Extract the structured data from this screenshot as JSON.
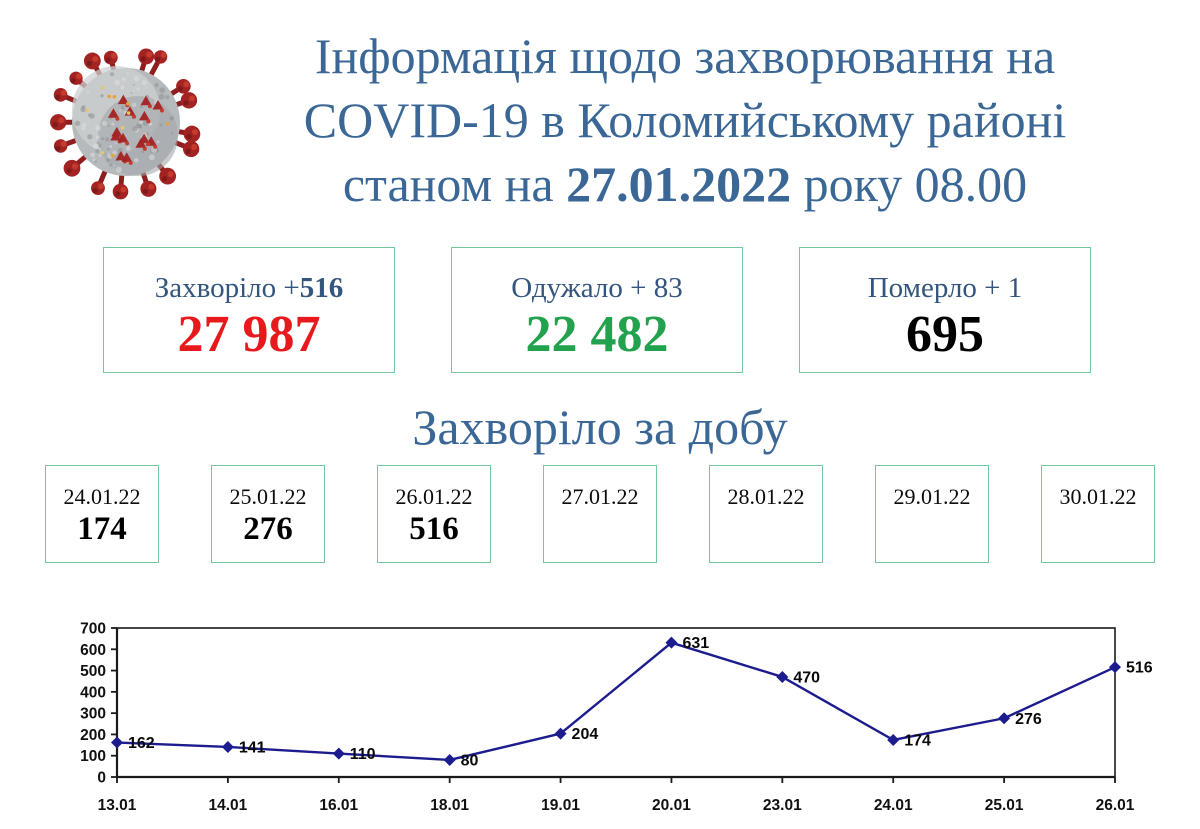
{
  "header": {
    "title_line1": "Інформація щодо захворювання на",
    "title_line2": "COVID-19 в Коломийському районі",
    "title_line3_prefix": "станом на ",
    "title_line3_bold": "27.01.2022",
    "title_line3_suffix": " року 08.00"
  },
  "icons": {
    "virus": "coronavirus-icon"
  },
  "summary_cards": [
    {
      "name": "infected",
      "label": "Захворіло +",
      "label_bold": "516",
      "value": "27 987",
      "color": "#e8191d"
    },
    {
      "name": "recovered",
      "label": "Одужало + 83",
      "label_bold": "",
      "value": "22 482",
      "color": "#22a24c"
    },
    {
      "name": "deceased",
      "label": "Померло + 1",
      "label_bold": "",
      "value": "695",
      "color": "#000000"
    }
  ],
  "daily_section": {
    "heading": "Захворіло за добу"
  },
  "daily_boxes": [
    {
      "date": "24.01.22",
      "value": "174"
    },
    {
      "date": "25.01.22",
      "value": "276"
    },
    {
      "date": "26.01.22",
      "value": "516"
    },
    {
      "date": "27.01.22",
      "value": ""
    },
    {
      "date": "28.01.22",
      "value": ""
    },
    {
      "date": "29.01.22",
      "value": ""
    },
    {
      "date": "30.01.22",
      "value": ""
    }
  ],
  "chart_data": {
    "type": "line",
    "categories": [
      "13.01",
      "14.01",
      "16.01",
      "18.01",
      "19.01",
      "20.01",
      "23.01",
      "24.01",
      "25.01",
      "26.01"
    ],
    "values": [
      162,
      141,
      110,
      80,
      204,
      631,
      470,
      174,
      276,
      516
    ],
    "title": "",
    "xlabel": "",
    "ylabel": "",
    "ylim": [
      0,
      700
    ],
    "ytick_step": 100,
    "grid": false,
    "legend": false,
    "marker": "diamond",
    "data_labels": true
  },
  "colors": {
    "title_blue": "#3a6795",
    "label_blue": "#33557e",
    "box_border": "#74c89b",
    "line_navy": "#1c1c8f",
    "axis_black": "#1a1a1a",
    "red": "#e8191d",
    "green": "#22a24c"
  }
}
